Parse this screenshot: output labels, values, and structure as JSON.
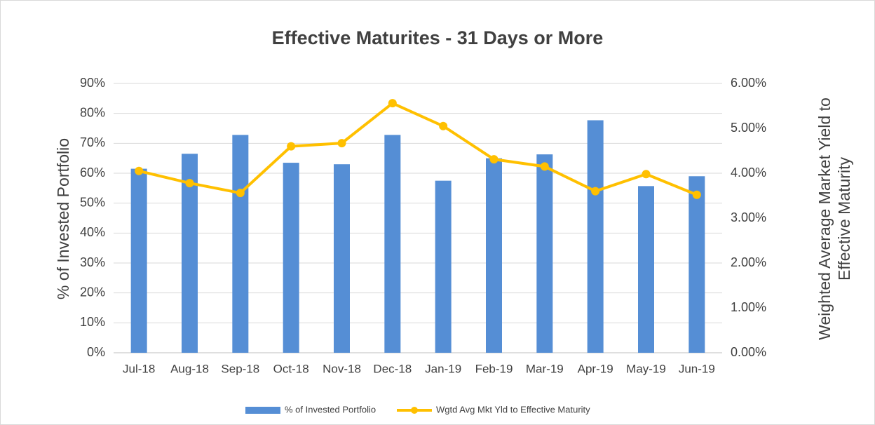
{
  "chart_data": {
    "type": "bar-line",
    "title": "Effective Maturites - 31 Days or More",
    "y_label": "% of Invested Portfolio",
    "y2_label": "Weighted Average Market Yield to Effective Maturity",
    "categories": [
      "Jul-18",
      "Aug-18",
      "Sep-18",
      "Oct-18",
      "Nov-18",
      "Dec-18",
      "Jan-19",
      "Feb-19",
      "Mar-19",
      "Apr-19",
      "May-19",
      "Jun-19"
    ],
    "series": [
      {
        "name": "% of Invested Portfolio",
        "type": "bar",
        "color": "#558ed5",
        "values": [
          61.5,
          66.5,
          72.8,
          63.5,
          63,
          72.8,
          57.5,
          65,
          66.3,
          77.7,
          55.7,
          59
        ]
      },
      {
        "name": "Wgtd Avg Mkt Yld to Effective Maturity",
        "type": "line",
        "axis": "y2",
        "color": "#ffc000",
        "values": [
          4.05,
          3.78,
          3.56,
          4.6,
          4.67,
          5.56,
          5.05,
          4.31,
          4.15,
          3.6,
          3.98,
          3.52
        ]
      }
    ],
    "ylim": [
      0,
      90
    ],
    "yticks": [
      {
        "value": 0,
        "label": "0%"
      },
      {
        "value": 10,
        "label": "10%"
      },
      {
        "value": 20,
        "label": "20%"
      },
      {
        "value": 30,
        "label": "30%"
      },
      {
        "value": 40,
        "label": "40%"
      },
      {
        "value": 50,
        "label": "50%"
      },
      {
        "value": 60,
        "label": "60%"
      },
      {
        "value": 70,
        "label": "70%"
      },
      {
        "value": 80,
        "label": "80%"
      },
      {
        "value": 90,
        "label": "90%"
      }
    ],
    "y2lim": [
      0,
      6
    ],
    "y2ticks": [
      {
        "value": 0,
        "label": "0.00%"
      },
      {
        "value": 1,
        "label": "1.00%"
      },
      {
        "value": 2,
        "label": "2.00%"
      },
      {
        "value": 3,
        "label": "3.00%"
      },
      {
        "value": 4,
        "label": "4.00%"
      },
      {
        "value": 5,
        "label": "5.00%"
      },
      {
        "value": 6,
        "label": "6.00%"
      }
    ],
    "grid": true,
    "legend": "bottom"
  }
}
